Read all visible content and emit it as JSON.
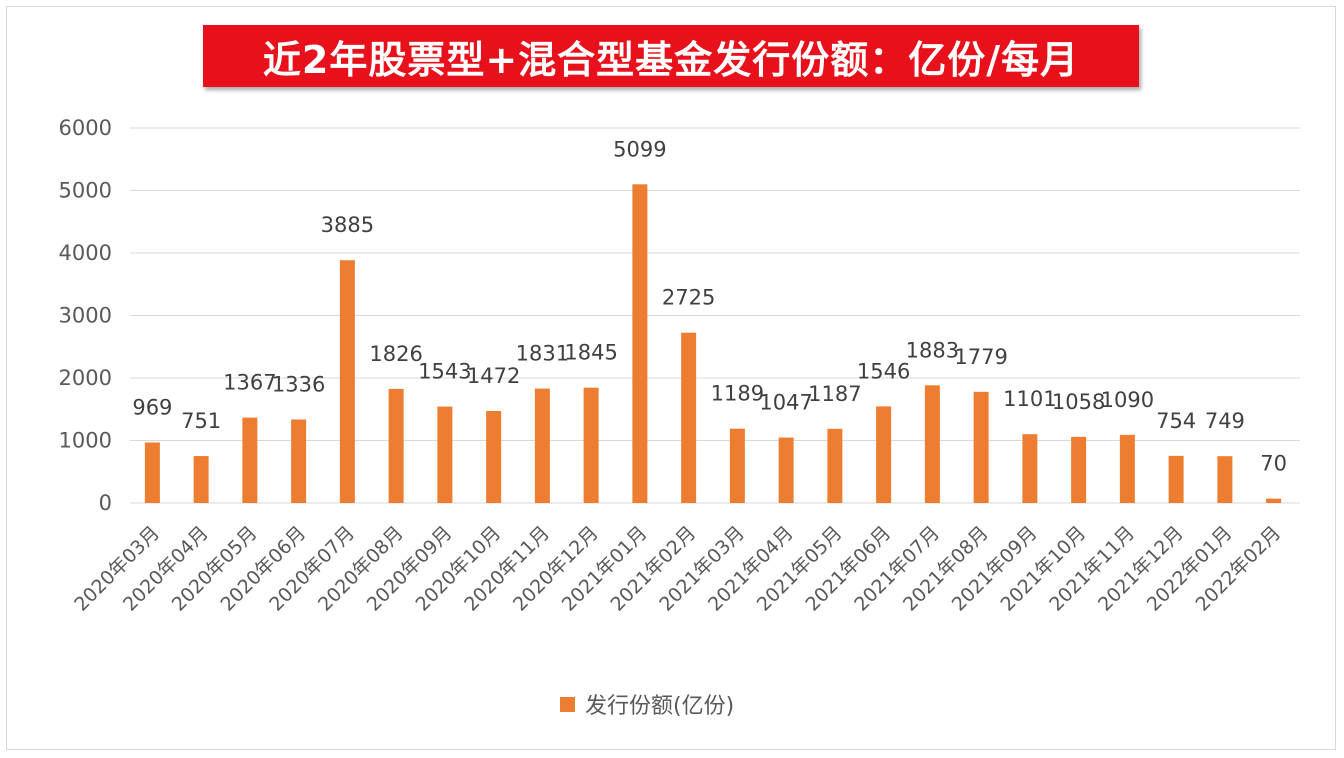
{
  "title": "近2年股票型+混合型基金发行份额：亿份/每月",
  "chart_data": {
    "type": "bar",
    "categories": [
      "2020年03月",
      "2020年04月",
      "2020年05月",
      "2020年06月",
      "2020年07月",
      "2020年08月",
      "2020年09月",
      "2020年10月",
      "2020年11月",
      "2020年12月",
      "2021年01月",
      "2021年02月",
      "2021年03月",
      "2021年04月",
      "2021年05月",
      "2021年06月",
      "2021年07月",
      "2021年08月",
      "2021年09月",
      "2021年10月",
      "2021年11月",
      "2021年12月",
      "2022年01月",
      "2022年02月"
    ],
    "series": [
      {
        "name": "发行份额(亿份)",
        "values": [
          969,
          751,
          1367,
          1336,
          3885,
          1826,
          1543,
          1472,
          1831,
          1845,
          5099,
          2725,
          1189,
          1047,
          1187,
          1546,
          1883,
          1779,
          1101,
          1058,
          1090,
          754,
          749,
          70
        ],
        "color": "#ed7d31"
      }
    ],
    "yticks": [
      0,
      1000,
      2000,
      3000,
      4000,
      5000,
      6000
    ],
    "ylim": [
      0,
      6000
    ],
    "grid": true,
    "legend": "bottom"
  },
  "colors": {
    "banner": "#e8101a",
    "bar": "#ed7d31",
    "grid": "#d9d9d9"
  }
}
